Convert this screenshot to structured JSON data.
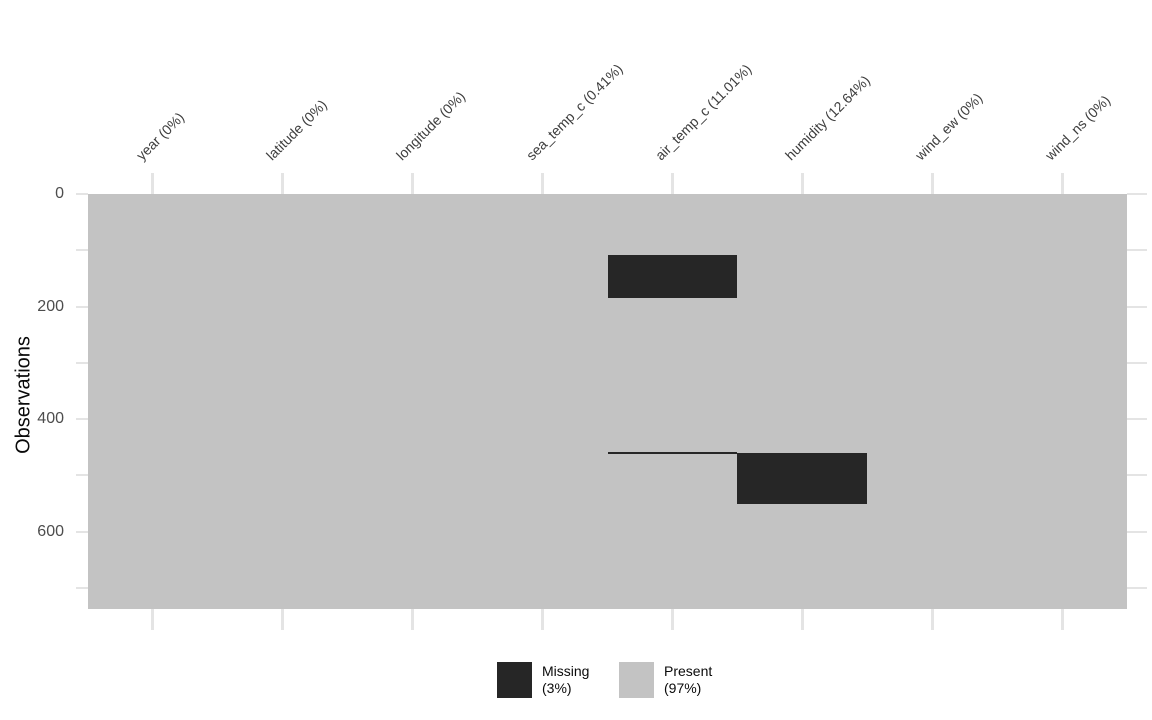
{
  "chart_data": {
    "type": "heatmap",
    "subtype": "missing-data-matrix",
    "title": "",
    "ylabel": "Observations",
    "x_axis": {
      "position": "top",
      "label_angle_deg": 45
    },
    "y_axis": {
      "major_ticks": [
        0,
        200,
        400,
        600
      ],
      "minor_ticks": [
        100,
        300,
        500,
        700
      ],
      "range": [
        0,
        736
      ]
    },
    "columns": [
      {
        "name": "year",
        "label": "year (0%)",
        "missing_pct": 0,
        "missing_runs": []
      },
      {
        "name": "latitude",
        "label": "latitude (0%)",
        "missing_pct": 0,
        "missing_runs": []
      },
      {
        "name": "longitude",
        "label": "longitude (0%)",
        "missing_pct": 0,
        "missing_runs": []
      },
      {
        "name": "sea_temp_c",
        "label": "sea_temp_c (0.41%)",
        "missing_pct": 0.41,
        "missing_runs": []
      },
      {
        "name": "air_temp_c",
        "label": "air_temp_c (11.01%)",
        "missing_pct": 11.01,
        "missing_runs": [
          [
            108,
            184
          ],
          [
            459,
            462
          ]
        ]
      },
      {
        "name": "humidity",
        "label": "humidity (12.64%)",
        "missing_pct": 12.64,
        "missing_runs": [
          [
            461,
            551
          ]
        ]
      },
      {
        "name": "wind_ew",
        "label": "wind_ew (0%)",
        "missing_pct": 0,
        "missing_runs": []
      },
      {
        "name": "wind_ns",
        "label": "wind_ns (0%)",
        "missing_pct": 0,
        "missing_runs": []
      }
    ],
    "legend": [
      {
        "key": "missing",
        "line1": "Missing",
        "line2": "(3%)",
        "color": "#262626"
      },
      {
        "key": "present",
        "line1": "Present",
        "line2": "(97%)",
        "color": "#c3c3c3"
      }
    ],
    "colors": {
      "missing": "#262626",
      "present": "#c3c3c3",
      "tick": "#e4e4e4",
      "axis_text": "#4d4d4d",
      "column_label_text": "#3d3d3d",
      "title_text": "#0a0a0a",
      "background": "#ffffff"
    }
  }
}
